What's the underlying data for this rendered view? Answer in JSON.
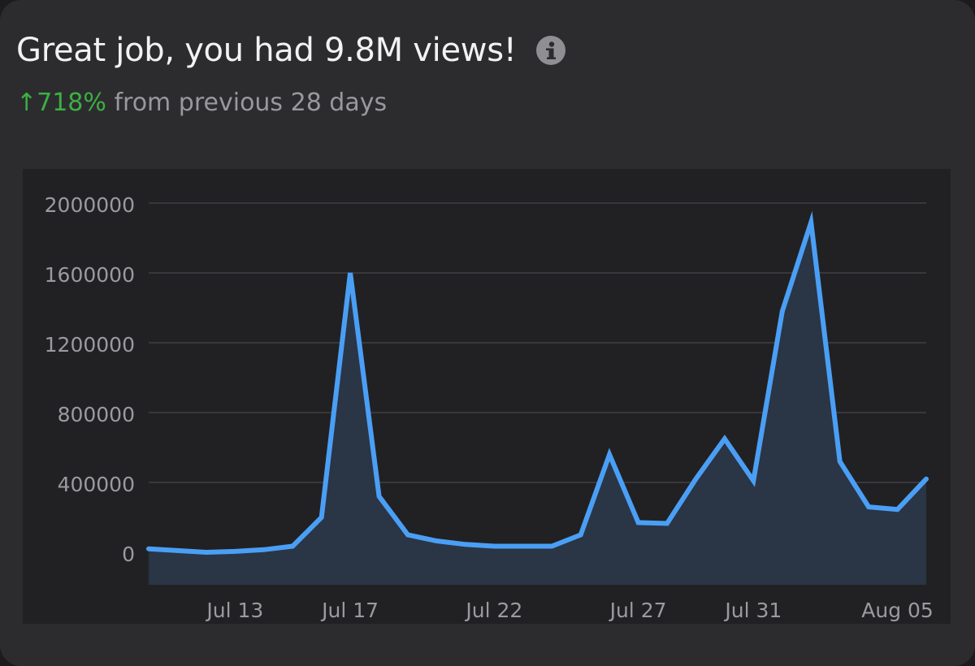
{
  "header": {
    "title": "Great job, you had 9.8M views!",
    "info_icon": "info-icon"
  },
  "summary": {
    "change": "↑718%",
    "comparison": "from previous 28 days",
    "change_color": "#3cb043"
  },
  "colors": {
    "line": "#4a9ff5",
    "area": "#2a3545",
    "card": "#2c2c2e",
    "plot_bg": "#212123",
    "grid": "#505055",
    "tick_text": "#9a9aa0"
  },
  "chart_data": {
    "type": "area",
    "title": "Great job, you had 9.8M views!",
    "xlabel": "",
    "ylabel": "",
    "ylim": [
      0,
      2000000
    ],
    "yticks": [
      0,
      400000,
      800000,
      1200000,
      1600000,
      2000000
    ],
    "ytick_labels": [
      "0",
      "400000",
      "800000",
      "1200000",
      "1600000",
      "2000000"
    ],
    "grid": true,
    "xtick_labels": [
      {
        "label": "Jul 13",
        "index": 3
      },
      {
        "label": "Jul 17",
        "index": 7
      },
      {
        "label": "Jul 22",
        "index": 12
      },
      {
        "label": "Jul 27",
        "index": 17
      },
      {
        "label": "Jul 31",
        "index": 21
      },
      {
        "label": "Aug 05",
        "index": 26
      }
    ],
    "series": [
      {
        "name": "Views",
        "values": [
          20000,
          10000,
          0,
          5000,
          15000,
          35000,
          200000,
          1600000,
          320000,
          100000,
          65000,
          45000,
          35000,
          35000,
          35000,
          100000,
          560000,
          170000,
          165000,
          420000,
          650000,
          410000,
          1380000,
          1890000,
          520000,
          260000,
          245000,
          420000
        ]
      }
    ]
  }
}
